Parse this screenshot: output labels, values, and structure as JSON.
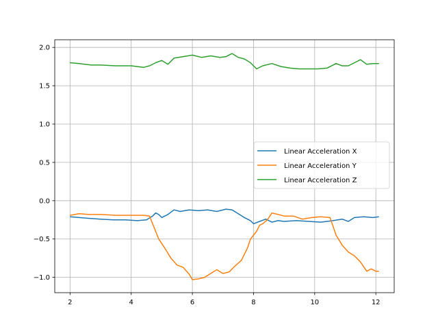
{
  "chart_data": {
    "type": "line",
    "title": "",
    "xlabel": "",
    "ylabel": "",
    "xlim": [
      1.5,
      12.6
    ],
    "ylim": [
      -1.2,
      2.1
    ],
    "xticks": [
      2,
      4,
      6,
      8,
      10,
      12
    ],
    "xtick_labels": [
      "2",
      "4",
      "6",
      "8",
      "10",
      "12"
    ],
    "yticks": [
      -1.0,
      -0.5,
      0.0,
      0.5,
      1.0,
      1.5,
      2.0
    ],
    "ytick_labels": [
      "−1.0",
      "−0.5",
      "0.0",
      "0.5",
      "1.0",
      "1.5",
      "2.0"
    ],
    "grid": true,
    "legend_position": "center-right",
    "series": [
      {
        "name": "Linear Acceleration X",
        "color": "#1f77b4",
        "x": [
          2.0,
          2.3,
          2.6,
          3.0,
          3.4,
          3.8,
          4.2,
          4.5,
          4.7,
          4.8,
          4.9,
          5.0,
          5.2,
          5.4,
          5.6,
          5.9,
          6.2,
          6.5,
          6.8,
          7.1,
          7.3,
          7.5,
          7.7,
          7.9,
          8.0,
          8.2,
          8.4,
          8.6,
          8.8,
          9.0,
          9.4,
          9.8,
          10.2,
          10.6,
          10.9,
          11.1,
          11.3,
          11.6,
          11.9,
          12.1
        ],
        "y": [
          -0.21,
          -0.22,
          -0.23,
          -0.24,
          -0.25,
          -0.25,
          -0.26,
          -0.25,
          -0.2,
          -0.16,
          -0.18,
          -0.22,
          -0.18,
          -0.12,
          -0.14,
          -0.12,
          -0.13,
          -0.12,
          -0.14,
          -0.11,
          -0.12,
          -0.17,
          -0.22,
          -0.26,
          -0.3,
          -0.27,
          -0.24,
          -0.28,
          -0.26,
          -0.27,
          -0.26,
          -0.27,
          -0.28,
          -0.26,
          -0.24,
          -0.27,
          -0.22,
          -0.21,
          -0.22,
          -0.21
        ]
      },
      {
        "name": "Linear Acceleration Y",
        "color": "#ff7f0e",
        "x": [
          2.0,
          2.3,
          2.6,
          3.0,
          3.5,
          4.0,
          4.4,
          4.6,
          4.75,
          4.9,
          5.1,
          5.3,
          5.5,
          5.7,
          5.9,
          6.0,
          6.2,
          6.4,
          6.6,
          6.8,
          7.0,
          7.2,
          7.4,
          7.6,
          7.8,
          7.9,
          8.0,
          8.1,
          8.2,
          8.3,
          8.45,
          8.6,
          8.8,
          9.0,
          9.3,
          9.6,
          9.9,
          10.2,
          10.5,
          10.7,
          10.9,
          11.1,
          11.3,
          11.5,
          11.7,
          11.85,
          12.0,
          12.1
        ],
        "y": [
          -0.19,
          -0.17,
          -0.18,
          -0.18,
          -0.19,
          -0.19,
          -0.19,
          -0.2,
          -0.35,
          -0.5,
          -0.62,
          -0.75,
          -0.84,
          -0.87,
          -0.96,
          -1.03,
          -1.02,
          -1.0,
          -0.95,
          -0.9,
          -0.95,
          -0.93,
          -0.85,
          -0.78,
          -0.62,
          -0.5,
          -0.45,
          -0.4,
          -0.32,
          -0.3,
          -0.25,
          -0.16,
          -0.18,
          -0.2,
          -0.2,
          -0.24,
          -0.22,
          -0.21,
          -0.22,
          -0.45,
          -0.58,
          -0.67,
          -0.72,
          -0.8,
          -0.92,
          -0.89,
          -0.92,
          -0.92
        ]
      },
      {
        "name": "Linear Acceleration Z",
        "color": "#2ca02c",
        "x": [
          2.0,
          2.3,
          2.7,
          3.0,
          3.5,
          4.0,
          4.4,
          4.6,
          4.8,
          5.0,
          5.2,
          5.4,
          5.7,
          6.0,
          6.3,
          6.6,
          6.9,
          7.1,
          7.3,
          7.5,
          7.7,
          7.9,
          8.1,
          8.3,
          8.6,
          8.9,
          9.2,
          9.5,
          9.8,
          10.1,
          10.4,
          10.7,
          10.9,
          11.1,
          11.3,
          11.5,
          11.7,
          11.9,
          12.1
        ],
        "y": [
          1.8,
          1.79,
          1.77,
          1.77,
          1.76,
          1.76,
          1.74,
          1.76,
          1.8,
          1.83,
          1.78,
          1.86,
          1.88,
          1.9,
          1.87,
          1.89,
          1.87,
          1.88,
          1.92,
          1.87,
          1.85,
          1.8,
          1.72,
          1.76,
          1.79,
          1.75,
          1.73,
          1.72,
          1.72,
          1.72,
          1.73,
          1.79,
          1.76,
          1.76,
          1.8,
          1.84,
          1.78,
          1.79,
          1.79
        ]
      }
    ]
  }
}
